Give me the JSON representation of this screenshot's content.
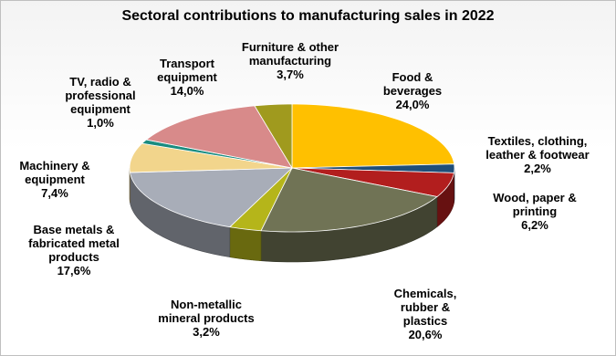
{
  "chart_data": {
    "type": "pie",
    "title": "Sectoral contributions to manufacturing sales in 2022",
    "slices": [
      {
        "label": "Food &\nbeverages",
        "value": 24.0,
        "value_label": "24,0%",
        "color": "#FFC000"
      },
      {
        "label": "Textiles, clothing,\nleather & footwear",
        "value": 2.2,
        "value_label": "2,2%",
        "color": "#1F4E79"
      },
      {
        "label": "Wood, paper &\nprinting",
        "value": 6.2,
        "value_label": "6,2%",
        "color": "#B21E1E"
      },
      {
        "label": "Chemicals,\nrubber &\nplastics",
        "value": 20.6,
        "value_label": "20,6%",
        "color": "#707355"
      },
      {
        "label": "Non-metallic\nmineral products",
        "value": 3.2,
        "value_label": "3,2%",
        "color": "#B5B51A"
      },
      {
        "label": "Base metals &\nfabricated metal\nproducts",
        "value": 17.6,
        "value_label": "17,6%",
        "color": "#A8ADB8"
      },
      {
        "label": "Machinery &\nequipment",
        "value": 7.4,
        "value_label": "7,4%",
        "color": "#F2D58C"
      },
      {
        "label": "TV, radio &\nprofessional\nequipment",
        "value": 1.0,
        "value_label": "1,0%",
        "color": "#1A8C80"
      },
      {
        "label": "Transport\nequipment",
        "value": 14.0,
        "value_label": "14,0%",
        "color": "#D88A8A"
      },
      {
        "label": "Furniture & other\nmanufacturing",
        "value": 3.7,
        "value_label": "3,7%",
        "color": "#A09A1E"
      }
    ],
    "start_angle_deg": 0,
    "direction": "clockwise",
    "legend": "none",
    "style": "3d"
  }
}
